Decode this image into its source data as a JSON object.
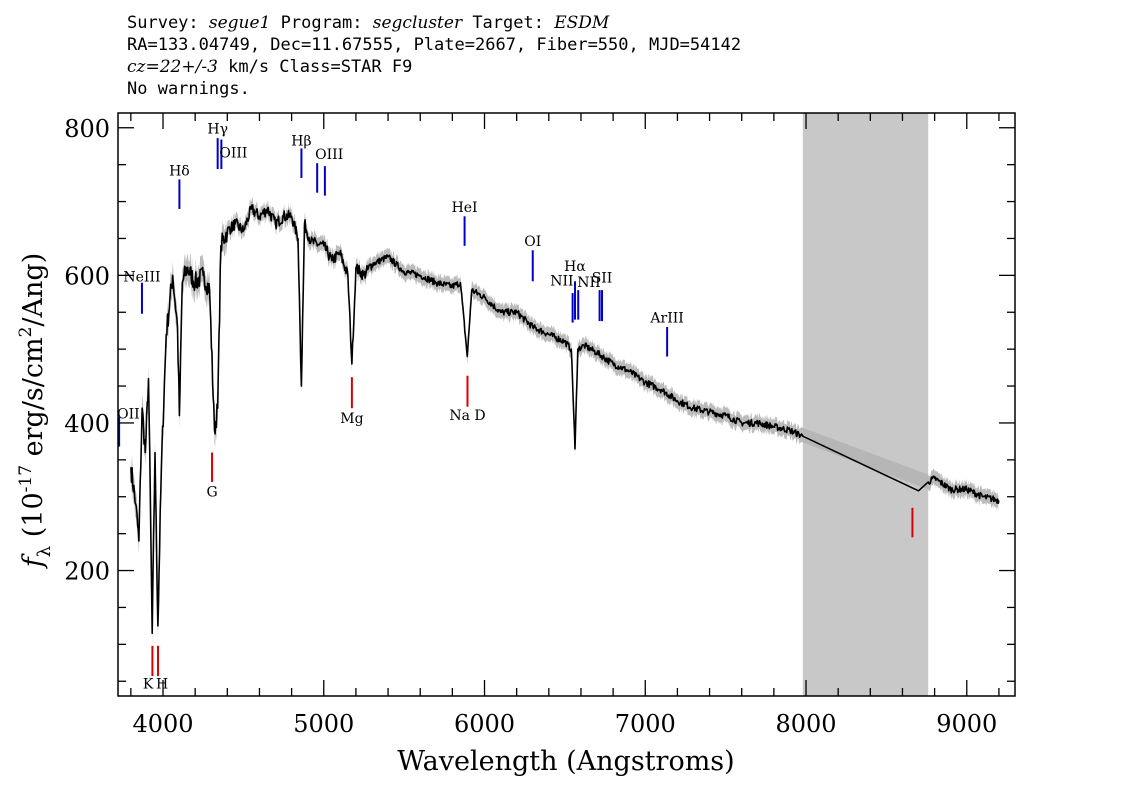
{
  "header": {
    "line1": {
      "survey_label": "Survey: ",
      "survey": "segue1",
      "program_label": " Program: ",
      "program": "segcluster",
      "target_label": " Target: ",
      "target": "ESDM"
    },
    "line2": "RA=133.04749, Dec=11.67555, Plate=2667, Fiber=550, MJD=54142",
    "line3": {
      "cz": "cz=22+/-3",
      "rest": " km/s Class=STAR F9"
    },
    "line4": "No warnings."
  },
  "chart_data": {
    "type": "line",
    "title": "",
    "xlabel": "Wavelength (Angstroms)",
    "ylabel_prefix": "f",
    "ylabel_sub": "λ",
    "ylabel_rest": " (10",
    "ylabel_exp1": "-17",
    "ylabel_mid": " erg/s/cm",
    "ylabel_exp2": "2",
    "ylabel_end": "/Ang)",
    "xlim": [
      3720,
      9300
    ],
    "ylim": [
      30,
      820
    ],
    "xticks": [
      4000,
      5000,
      6000,
      7000,
      8000,
      9000
    ],
    "yticks": [
      200,
      400,
      600,
      800
    ],
    "masked_region": [
      7980,
      8760
    ],
    "colors": {
      "flux": "#000000",
      "error": "#b4b4b4",
      "emission": "#0000cc",
      "absorption": "#dd0000",
      "mask": "#c8c8c8"
    },
    "flux": {
      "x": [
        3800,
        3830,
        3850,
        3870,
        3890,
        3910,
        3933,
        3950,
        3968,
        3990,
        4020,
        4060,
        4090,
        4102,
        4120,
        4150,
        4200,
        4250,
        4290,
        4320,
        4340,
        4360,
        4400,
        4450,
        4500,
        4550,
        4600,
        4650,
        4700,
        4750,
        4800,
        4840,
        4861,
        4880,
        4920,
        5000,
        5050,
        5100,
        5150,
        5175,
        5200,
        5250,
        5300,
        5400,
        5500,
        5600,
        5700,
        5800,
        5850,
        5893,
        5920,
        6000,
        6100,
        6200,
        6300,
        6400,
        6500,
        6540,
        6563,
        6580,
        6620,
        6700,
        6800,
        6900,
        7000,
        7100,
        7200,
        7300,
        7400,
        7500,
        7600,
        7700,
        7800,
        7900,
        7980,
        8700,
        8760,
        8800,
        8900,
        9000,
        9100,
        9200
      ],
      "y": [
        340,
        290,
        240,
        420,
        360,
        460,
        115,
        360,
        125,
        340,
        520,
        600,
        530,
        410,
        590,
        610,
        590,
        600,
        580,
        390,
        420,
        640,
        660,
        670,
        660,
        690,
        680,
        690,
        670,
        680,
        680,
        650,
        450,
        670,
        645,
        640,
        620,
        630,
        600,
        480,
        610,
        600,
        615,
        625,
        605,
        600,
        590,
        585,
        590,
        490,
        580,
        570,
        550,
        550,
        530,
        520,
        510,
        500,
        365,
        500,
        505,
        495,
        480,
        470,
        455,
        445,
        430,
        420,
        415,
        410,
        400,
        400,
        395,
        390,
        382,
        308,
        320,
        325,
        310,
        310,
        300,
        295
      ]
    },
    "emission_lines": [
      {
        "label": "OII",
        "wave": 3727,
        "y0": 368,
        "y1": 408,
        "label_y": 406,
        "anchor": "start"
      },
      {
        "label": "NeIII",
        "wave": 3869,
        "y0": 548,
        "y1": 590,
        "label_y": 592,
        "anchor": "middle"
      },
      {
        "label": "Hδ",
        "wave": 4102,
        "y0": 690,
        "y1": 730,
        "label_y": 735,
        "anchor": "middle"
      },
      {
        "label": "Hγ",
        "wave": 4340,
        "y0": 744,
        "y1": 786,
        "label_y": 792,
        "anchor": "middle"
      },
      {
        "label": "OIII",
        "wave": 4363,
        "y0": 744,
        "y1": 784,
        "label_y": 760,
        "anchor": "start"
      },
      {
        "label": "Hβ",
        "wave": 4861,
        "y0": 732,
        "y1": 772,
        "label_y": 776,
        "anchor": "middle"
      },
      {
        "label": "OIII",
        "wave": 4959,
        "y0": 712,
        "y1": 752,
        "label_y": 758,
        "anchor": "start"
      },
      {
        "label": "",
        "wave": 5007,
        "y0": 708,
        "y1": 748,
        "label_y": 0,
        "anchor": "start"
      },
      {
        "label": "HeI",
        "wave": 5876,
        "y0": 640,
        "y1": 680,
        "label_y": 686,
        "anchor": "middle"
      },
      {
        "label": "OI",
        "wave": 6300,
        "y0": 592,
        "y1": 634,
        "label_y": 640,
        "anchor": "middle"
      },
      {
        "label": "NII",
        "wave": 6548,
        "y0": 536,
        "y1": 576,
        "label_y": 586,
        "anchor": "end"
      },
      {
        "label": "Hα",
        "wave": 6563,
        "y0": 540,
        "y1": 592,
        "label_y": 606,
        "anchor": "middle"
      },
      {
        "label": "",
        "wave": 6583,
        "y0": 540,
        "y1": 580,
        "label_y": 0,
        "anchor": "start"
      },
      {
        "label": "NII",
        "wave": 6716,
        "y0": 538,
        "y1": 580,
        "label_y": 584,
        "anchor": "end"
      },
      {
        "label": "SII",
        "wave": 6731,
        "y0": 538,
        "y1": 580,
        "label_y": 590,
        "anchor": "middle"
      },
      {
        "label": "ArIII",
        "wave": 7136,
        "y0": 490,
        "y1": 530,
        "label_y": 536,
        "anchor": "middle"
      }
    ],
    "absorption_lines": [
      {
        "label": "K",
        "wave": 3934,
        "y0": 57,
        "y1": 98,
        "label_y": 40,
        "anchor": "end"
      },
      {
        "label": "H",
        "wave": 3969,
        "y0": 57,
        "y1": 98,
        "label_y": 40,
        "anchor": "start"
      },
      {
        "label": "G",
        "wave": 4305,
        "y0": 320,
        "y1": 360,
        "label_y": 300,
        "anchor": "middle"
      },
      {
        "label": "Mg",
        "wave": 5175,
        "y0": 420,
        "y1": 462,
        "label_y": 400,
        "anchor": "middle"
      },
      {
        "label": "Na D",
        "wave": 5894,
        "y0": 422,
        "y1": 464,
        "label_y": 404,
        "anchor": "middle"
      },
      {
        "label": "",
        "wave": 8662,
        "y0": 245,
        "y1": 285,
        "label_y": 0,
        "anchor": "middle"
      }
    ]
  }
}
